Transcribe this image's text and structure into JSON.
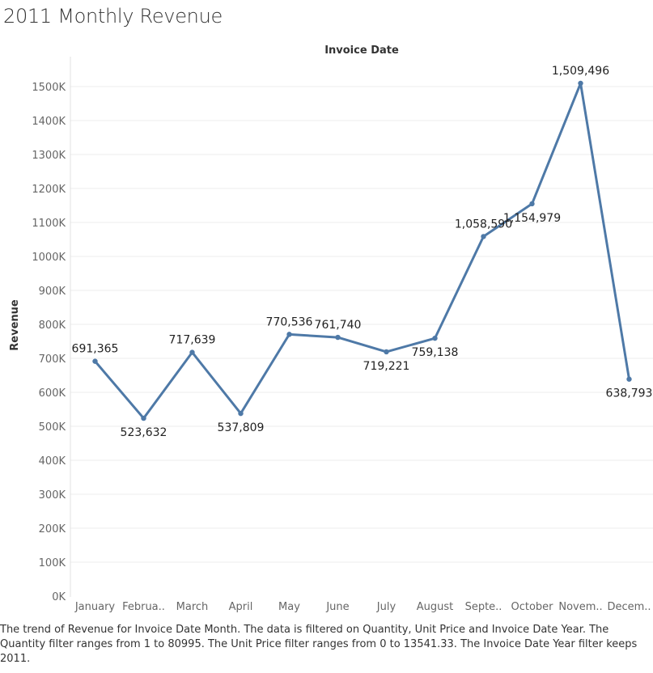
{
  "title": "2011 Monthly Revenue",
  "caption": "The trend of Revenue for Invoice Date Month. The data is filtered on Quantity, Unit Price and Invoice Date Year. The Quantity filter ranges from 1 to 80995. The Unit Price filter ranges from 0 to 13541.33. The Invoice Date Year filter keeps 2011.",
  "colors": {
    "line": "#4e79a7",
    "gridline": "#eeeeee",
    "axis_text": "#666666"
  },
  "chart_data": {
    "type": "line",
    "title": "2011 Monthly Revenue",
    "xlabel": "Invoice Date",
    "ylabel": "Revenue",
    "categories": [
      "January",
      "February",
      "March",
      "April",
      "May",
      "June",
      "July",
      "August",
      "September",
      "October",
      "November",
      "December"
    ],
    "category_labels": [
      "January",
      "Februa..",
      "March",
      "April",
      "May",
      "June",
      "July",
      "August",
      "Septe..",
      "October",
      "Novem..",
      "Decem.."
    ],
    "series": [
      {
        "values": [
          691365,
          523632,
          717639,
          537809,
          770536,
          761740,
          719221,
          759138,
          1058590,
          1154979,
          1509496,
          638793
        ],
        "data_labels": [
          "691,365",
          "523,632",
          "717,639",
          "537,809",
          "770,536",
          "761,740",
          "719,221",
          "759,138",
          "1,058,590",
          "1,154,979",
          "1,509,496",
          "638,793"
        ],
        "label_positions": [
          "above",
          "below",
          "above",
          "below",
          "above",
          "above",
          "below",
          "below",
          "above",
          "below",
          "above",
          "below"
        ]
      }
    ],
    "yticks": [
      0,
      100000,
      200000,
      300000,
      400000,
      500000,
      600000,
      700000,
      800000,
      900000,
      1000000,
      1100000,
      1200000,
      1300000,
      1400000,
      1500000
    ],
    "ytick_labels": [
      "0K",
      "100K",
      "200K",
      "300K",
      "400K",
      "500K",
      "600K",
      "700K",
      "800K",
      "900K",
      "1000K",
      "1100K",
      "1200K",
      "1300K",
      "1400K",
      "1500K"
    ],
    "ylim": [
      0,
      1530000
    ],
    "grid": true,
    "x_axis_title_position": "top"
  }
}
